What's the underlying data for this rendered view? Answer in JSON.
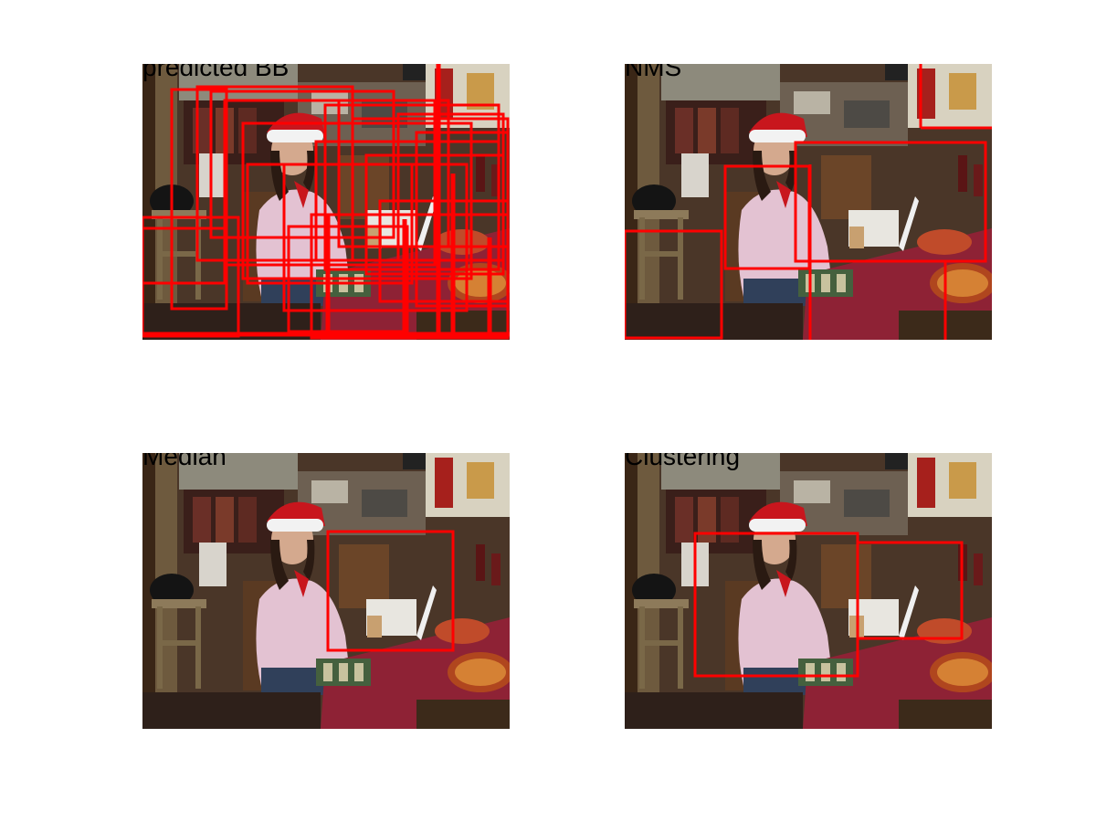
{
  "colors": {
    "box": "#ff0000",
    "background": "#ffffff"
  },
  "panels": [
    {
      "id": "p1",
      "title": "predicted BB"
    },
    {
      "id": "p2",
      "title": "NMS"
    },
    {
      "id": "p3",
      "title": "Median"
    },
    {
      "id": "p4",
      "title": "Clustering"
    }
  ]
}
